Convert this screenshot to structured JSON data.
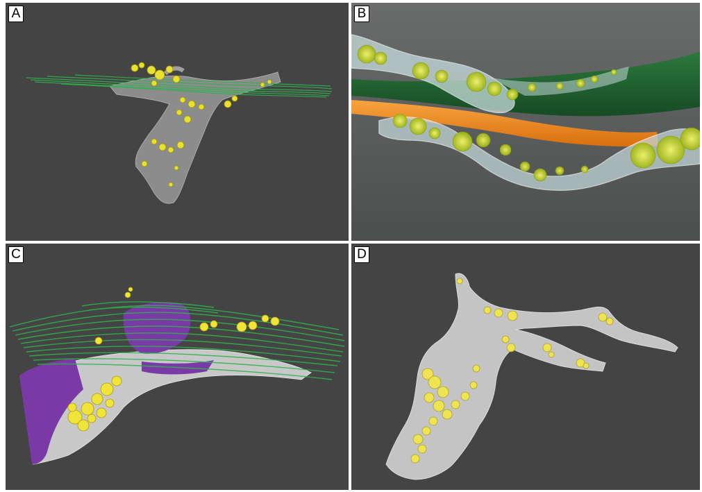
{
  "panels": [
    {
      "id": "A",
      "label": "A"
    },
    {
      "id": "B",
      "label": "B"
    },
    {
      "id": "C",
      "label": "C"
    },
    {
      "id": "D",
      "label": "D"
    }
  ],
  "colors": {
    "background": "#444444",
    "background_b": "#5c5e5e",
    "tissue_grey": "#8d8d8d",
    "tissue_white": "#cfd3d3",
    "fiber_green": "#2bb24a",
    "fiber_dark_green": "#1d5b2c",
    "axon_orange": "#f08a1e",
    "cell_yellow": "#e8e23a",
    "region_purple": "#7a3aa6"
  }
}
